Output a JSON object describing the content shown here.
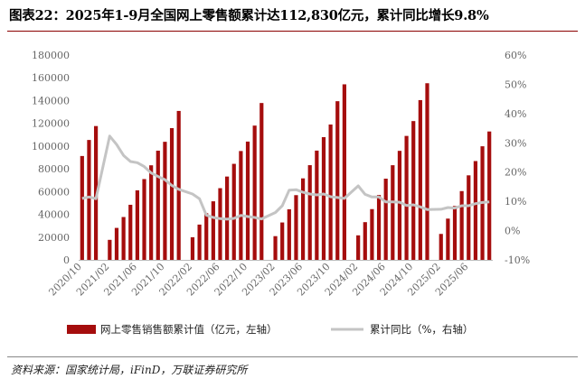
{
  "title": "图表22：2025年1-9月全国网上零售额累计达112,830亿元，累计同比增长9.8%",
  "source": "资料来源：国家统计局，iFinD，万联证券研究所",
  "colors": {
    "bar": "#a50d0d",
    "line": "#c4c4c4",
    "rule": "#8b0000"
  },
  "chart_data": {
    "type": "bar",
    "left_axis": {
      "ticks": [
        "0",
        "20000",
        "40000",
        "60000",
        "80000",
        "100000",
        "120000",
        "140000",
        "160000",
        "180000"
      ],
      "min": 0,
      "max": 180000
    },
    "right_axis": {
      "ticks": [
        "-10%",
        "0%",
        "10%",
        "20%",
        "30%",
        "40%",
        "50%",
        "60%"
      ],
      "min": -10,
      "max": 60
    },
    "x_tick_labels": [
      "2020/10",
      "2021/02",
      "2021/06",
      "2021/10",
      "2022/02",
      "2022/06",
      "2022/10",
      "2023/02",
      "2023/06",
      "2023/10",
      "2024/02",
      "2024/06",
      "2024/10",
      "2025/02",
      "2025/06"
    ],
    "categories": [
      "2020/10",
      "2020/11",
      "2020/12",
      "2021/01",
      "2021/02",
      "2021/03",
      "2021/04",
      "2021/05",
      "2021/06",
      "2021/07",
      "2021/08",
      "2021/09",
      "2021/10",
      "2021/11",
      "2021/12",
      "2022/01",
      "2022/02",
      "2022/03",
      "2022/04",
      "2022/05",
      "2022/06",
      "2022/07",
      "2022/08",
      "2022/09",
      "2022/10",
      "2022/11",
      "2022/12",
      "2023/01",
      "2023/02",
      "2023/03",
      "2023/04",
      "2023/05",
      "2023/06",
      "2023/07",
      "2023/08",
      "2023/09",
      "2023/10",
      "2023/11",
      "2023/12",
      "2024/01",
      "2024/02",
      "2024/03",
      "2024/04",
      "2024/05",
      "2024/06",
      "2024/07",
      "2024/08",
      "2024/09",
      "2024/10",
      "2024/11",
      "2024/12",
      "2025/01",
      "2025/02",
      "2025/03",
      "2025/04",
      "2025/05",
      "2025/06",
      "2025/07",
      "2025/08",
      "2025/09"
    ],
    "series": [
      {
        "name": "网上零售销售额累计值（亿元，左轴）",
        "axis": "left",
        "type": "bar",
        "values": [
          91275,
          105374,
          117601,
          null,
          17587,
          28093,
          37658,
          48414,
          61133,
          71007,
          83107,
          95964,
          103765,
          115799,
          130884,
          null,
          19907,
          31007,
          40962,
          51472,
          63007,
          73230,
          84399,
          95662,
          103948,
          117999,
          137853,
          null,
          20845,
          32863,
          44468,
          56885,
          71621,
          83225,
          96020,
          107839,
          118940,
          139441,
          154264,
          null,
          21559,
          33152,
          44599,
          57036,
          71355,
          83174,
          95816,
          108927,
          121983,
          140400,
          155225,
          null,
          22807,
          36262,
          47380,
          60444,
          74295,
          86835,
          99827,
          112830
        ]
      },
      {
        "name": "累计同比（%，右轴）",
        "axis": "right",
        "type": "line",
        "values": [
          11.0,
          11.5,
          10.9,
          null,
          32.3,
          29.4,
          25.7,
          23.6,
          23.2,
          21.9,
          19.7,
          18.5,
          17.4,
          15.4,
          14.1,
          null,
          12.5,
          10.9,
          5.3,
          4.5,
          4.1,
          3.9,
          4.2,
          5.2,
          4.8,
          4.5,
          4.0,
          null,
          6.2,
          8.5,
          13.8,
          14.0,
          13.1,
          12.5,
          12.2,
          12.5,
          11.6,
          11.3,
          11.0,
          null,
          15.3,
          12.4,
          11.5,
          11.5,
          9.8,
          9.8,
          9.7,
          8.6,
          8.8,
          8.1,
          7.2,
          null,
          7.3,
          7.9,
          7.7,
          8.5,
          8.5,
          9.2,
          9.6,
          9.8
        ]
      }
    ],
    "grid": false,
    "legend": "bottom"
  }
}
